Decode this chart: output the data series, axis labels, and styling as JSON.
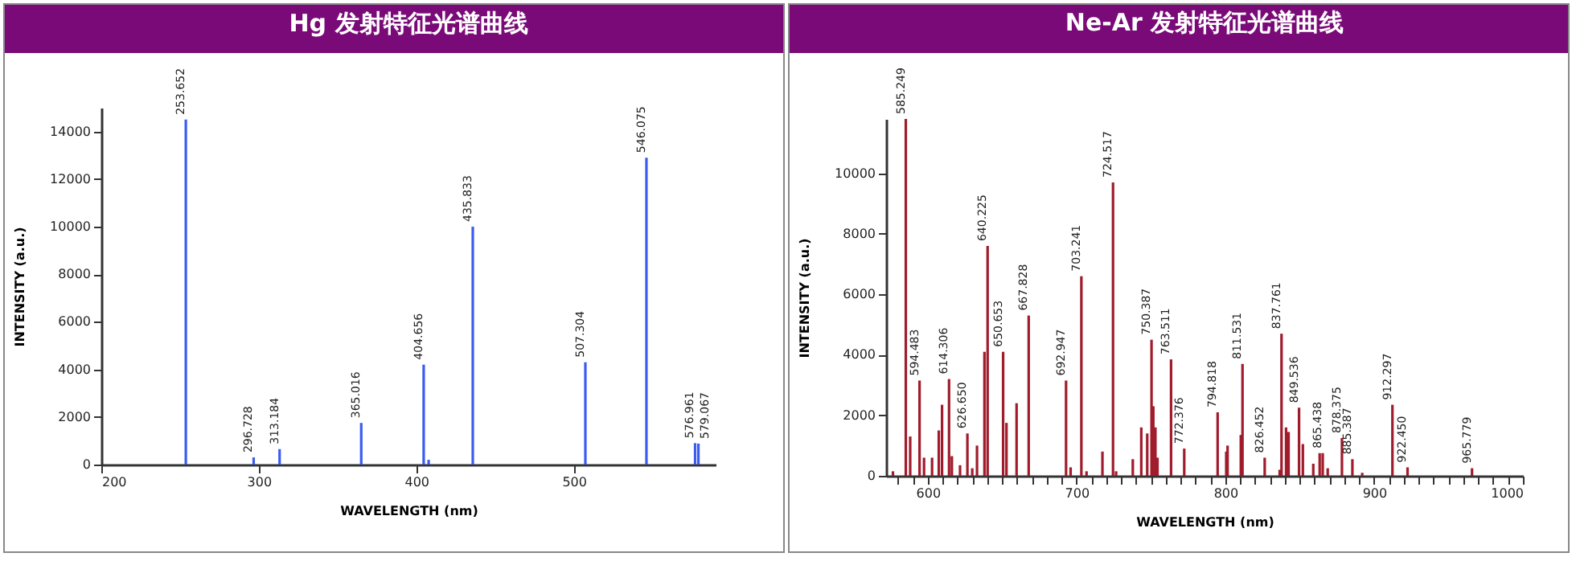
{
  "chart_data": [
    {
      "type": "bar",
      "title": "Hg 发射特征光谱曲线",
      "xlabel": "WAVELENGTH (nm)",
      "ylabel": "INTENSITY (a.u.)",
      "color": "#3a5cf0",
      "grid": false,
      "x": [
        253.652,
        296.728,
        313.184,
        365.016,
        404.656,
        407.8,
        435.833,
        507.304,
        546.075,
        576.961,
        579.067
      ],
      "values": [
        14500,
        300,
        650,
        1750,
        4200,
        200,
        10000,
        4300,
        12900,
        900,
        880
      ],
      "xlim": [
        200,
        590
      ],
      "xticks": [
        200,
        300,
        400,
        500
      ],
      "ylim": [
        0,
        15000
      ],
      "yticks": [
        0,
        2000,
        4000,
        6000,
        8000,
        10000,
        12000,
        14000
      ],
      "annotations": [
        {
          "text": "253.652",
          "x": 253.652,
          "y": 14500
        },
        {
          "text": "296.728",
          "x": 296.728,
          "y": 300
        },
        {
          "text": "313.184",
          "x": 313.184,
          "y": 650
        },
        {
          "text": "365.016",
          "x": 365.016,
          "y": 1750
        },
        {
          "text": "404.656",
          "x": 404.656,
          "y": 4200
        },
        {
          "text": "435.833",
          "x": 435.833,
          "y": 10000
        },
        {
          "text": "507.304",
          "x": 507.304,
          "y": 4300
        },
        {
          "text": "546.075",
          "x": 546.075,
          "y": 12900
        },
        {
          "text": "576.961",
          "x": 576.961,
          "y": 900
        },
        {
          "text": "579.067",
          "x": 579.067,
          "y": 880
        }
      ]
    },
    {
      "type": "bar",
      "title": "Ne-Ar 发射特征光谱曲线",
      "xlabel": "WAVELENGTH (nm)",
      "ylabel": "INTENSITY (a.u.)",
      "color": "#a01c2c",
      "grid": false,
      "x": [
        576.6,
        585.249,
        588.2,
        594.483,
        597.5,
        602.9,
        607.4,
        609.6,
        614.306,
        616.2,
        621.7,
        626.65,
        629.9,
        633.1,
        638.1,
        640.225,
        650.653,
        652.9,
        659.7,
        667.828,
        692.947,
        696,
        703.241,
        706.7,
        717.4,
        724.517,
        726.6,
        737.8,
        743.5,
        747.5,
        750.387,
        751.6,
        753,
        754.4,
        763.511,
        772.376,
        794.818,
        800.6,
        801.5,
        810.4,
        811.531,
        826.452,
        836.5,
        837.761,
        840.8,
        842.5,
        849.536,
        852.1,
        859.1,
        863.4,
        865.438,
        868.8,
        878.375,
        885.387,
        892,
        912.297,
        922.45,
        965.779
      ],
      "values": [
        150,
        11800,
        1300,
        3150,
        600,
        600,
        1500,
        2350,
        3200,
        650,
        350,
        1400,
        250,
        1000,
        4100,
        7600,
        4100,
        1750,
        2400,
        5300,
        3150,
        280,
        6600,
        150,
        800,
        9700,
        150,
        550,
        1600,
        1400,
        4500,
        2300,
        1600,
        600,
        3850,
        900,
        2100,
        800,
        1000,
        1350,
        3700,
        600,
        200,
        4700,
        1600,
        1450,
        2250,
        1050,
        400,
        750,
        750,
        250,
        1250,
        550,
        100,
        2350,
        280,
        250
      ],
      "xlim": [
        572,
        1000
      ],
      "xticks": [
        {
          "value": 580,
          "label": null
        },
        {
          "value": 590,
          "label": null
        },
        600,
        {
          "value": 610,
          "label": null
        },
        {
          "value": 620,
          "label": null
        },
        {
          "value": 630,
          "label": null
        },
        {
          "value": 640,
          "label": null
        },
        {
          "value": 650,
          "label": null
        },
        {
          "value": 660,
          "label": null
        },
        {
          "value": 670,
          "label": null
        },
        {
          "value": 680,
          "label": null
        },
        {
          "value": 690,
          "label": null
        },
        700,
        {
          "value": 710,
          "label": null
        },
        {
          "value": 720,
          "label": null
        },
        {
          "value": 730,
          "label": null
        },
        {
          "value": 740,
          "label": null
        },
        {
          "value": 750,
          "label": null
        },
        {
          "value": 760,
          "label": null
        },
        {
          "value": 770,
          "label": null
        },
        {
          "value": 780,
          "label": null
        },
        {
          "value": 790,
          "label": null
        },
        800,
        {
          "value": 810,
          "label": null
        },
        {
          "value": 820,
          "label": null
        },
        {
          "value": 830,
          "label": null
        },
        {
          "value": 840,
          "label": null
        },
        {
          "value": 850,
          "label": null
        },
        {
          "value": 860,
          "label": null
        },
        {
          "value": 870,
          "label": null
        },
        {
          "value": 880,
          "label": null
        },
        {
          "value": 890,
          "label": null
        },
        900,
        {
          "value": 910,
          "label": null
        },
        {
          "value": 920,
          "label": null
        },
        {
          "value": 930,
          "label": null
        },
        {
          "value": 940,
          "label": null
        },
        {
          "value": 950,
          "label": null
        },
        {
          "value": 960,
          "label": null
        },
        {
          "value": 970,
          "label": null
        },
        {
          "value": 980,
          "label": null
        },
        {
          "value": 990,
          "label": null
        },
        1000
      ],
      "ylim": [
        0,
        11800
      ],
      "yticks": [
        0,
        2000,
        4000,
        6000,
        8000,
        10000
      ],
      "annotations": [
        {
          "text": "585.249",
          "x": 585.249,
          "y": 11800
        },
        {
          "text": "594.483",
          "x": 594.483,
          "y": 3150
        },
        {
          "text": "614.306",
          "x": 614.306,
          "y": 3200
        },
        {
          "text": "626.650",
          "x": 626.65,
          "y": 1400
        },
        {
          "text": "640.225",
          "x": 640.225,
          "y": 7600
        },
        {
          "text": "650.653",
          "x": 650.653,
          "y": 4100
        },
        {
          "text": "667.828",
          "x": 667.828,
          "y": 5300
        },
        {
          "text": "692.947",
          "x": 692.947,
          "y": 3150
        },
        {
          "text": "703.241",
          "x": 703.241,
          "y": 6600
        },
        {
          "text": "724.517",
          "x": 724.517,
          "y": 9700
        },
        {
          "text": "750.387",
          "x": 750.387,
          "y": 4500
        },
        {
          "text": "763.511",
          "x": 763.511,
          "y": 3850
        },
        {
          "text": "772.376",
          "x": 772.376,
          "y": 900
        },
        {
          "text": "794.818",
          "x": 794.818,
          "y": 2100
        },
        {
          "text": "811.531",
          "x": 811.531,
          "y": 3700
        },
        {
          "text": "826.452",
          "x": 826.452,
          "y": 600
        },
        {
          "text": "837.761",
          "x": 837.761,
          "y": 4700
        },
        {
          "text": "849.536",
          "x": 849.536,
          "y": 2250
        },
        {
          "text": "865.438",
          "x": 865.438,
          "y": 750
        },
        {
          "text": "878.375",
          "x": 878.375,
          "y": 1250
        },
        {
          "text": "885.387",
          "x": 885.387,
          "y": 550
        },
        {
          "text": "912.297",
          "x": 912.297,
          "y": 2350
        },
        {
          "text": "922.450",
          "x": 922.45,
          "y": 280
        },
        {
          "text": "965.779",
          "x": 965.779,
          "y": 250
        }
      ]
    }
  ]
}
